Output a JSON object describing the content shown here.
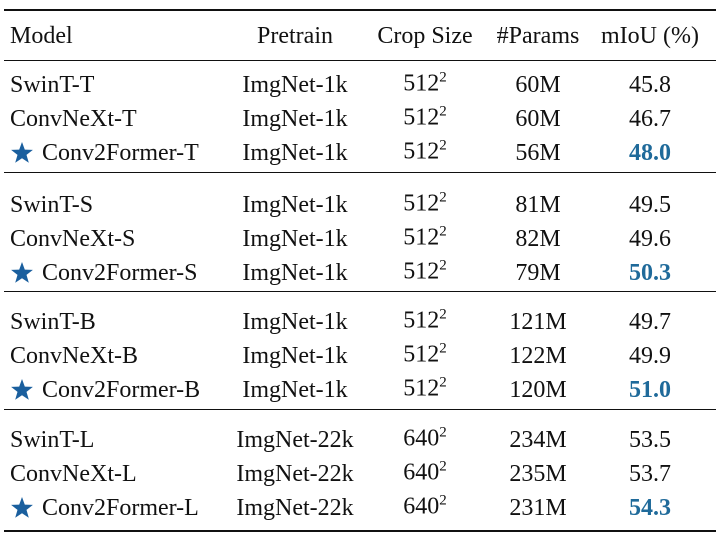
{
  "table": {
    "header": [
      "Model",
      "Pretrain",
      "Crop Size",
      "#Params",
      "mIoU (%)"
    ],
    "groups": [
      {
        "rows": [
          {
            "model": "SwinT-T",
            "pretrain": "ImgNet-1k",
            "crop": {
              "base": "512",
              "exp": "2"
            },
            "params": "60M",
            "miou": "45.8",
            "ours": false,
            "best": false
          },
          {
            "model": "ConvNeXt-T",
            "pretrain": "ImgNet-1k",
            "crop": {
              "base": "512",
              "exp": "2"
            },
            "params": "60M",
            "miou": "46.7",
            "ours": false,
            "best": false
          },
          {
            "model": "Conv2Former-T",
            "pretrain": "ImgNet-1k",
            "crop": {
              "base": "512",
              "exp": "2"
            },
            "params": "56M",
            "miou": "48.0",
            "ours": true,
            "best": true
          }
        ]
      },
      {
        "rows": [
          {
            "model": "SwinT-S",
            "pretrain": "ImgNet-1k",
            "crop": {
              "base": "512",
              "exp": "2"
            },
            "params": "81M",
            "miou": "49.5",
            "ours": false,
            "best": false
          },
          {
            "model": "ConvNeXt-S",
            "pretrain": "ImgNet-1k",
            "crop": {
              "base": "512",
              "exp": "2"
            },
            "params": "82M",
            "miou": "49.6",
            "ours": false,
            "best": false
          },
          {
            "model": "Conv2Former-S",
            "pretrain": "ImgNet-1k",
            "crop": {
              "base": "512",
              "exp": "2"
            },
            "params": "79M",
            "miou": "50.3",
            "ours": true,
            "best": true
          }
        ]
      },
      {
        "rows": [
          {
            "model": "SwinT-B",
            "pretrain": "ImgNet-1k",
            "crop": {
              "base": "512",
              "exp": "2"
            },
            "params": "121M",
            "miou": "49.7",
            "ours": false,
            "best": false
          },
          {
            "model": "ConvNeXt-B",
            "pretrain": "ImgNet-1k",
            "crop": {
              "base": "512",
              "exp": "2"
            },
            "params": "122M",
            "miou": "49.9",
            "ours": false,
            "best": false
          },
          {
            "model": "Conv2Former-B",
            "pretrain": "ImgNet-1k",
            "crop": {
              "base": "512",
              "exp": "2"
            },
            "params": "120M",
            "miou": "51.0",
            "ours": true,
            "best": true
          }
        ]
      },
      {
        "rows": [
          {
            "model": "SwinT-L",
            "pretrain": "ImgNet-22k",
            "crop": {
              "base": "640",
              "exp": "2"
            },
            "params": "234M",
            "miou": "53.5",
            "ours": false,
            "best": false
          },
          {
            "model": "ConvNeXt-L",
            "pretrain": "ImgNet-22k",
            "crop": {
              "base": "640",
              "exp": "2"
            },
            "params": "235M",
            "miou": "53.7",
            "ours": false,
            "best": false
          },
          {
            "model": "Conv2Former-L",
            "pretrain": "ImgNet-22k",
            "crop": {
              "base": "640",
              "exp": "2"
            },
            "params": "231M",
            "miou": "54.3",
            "ours": true,
            "best": true
          }
        ]
      }
    ]
  }
}
